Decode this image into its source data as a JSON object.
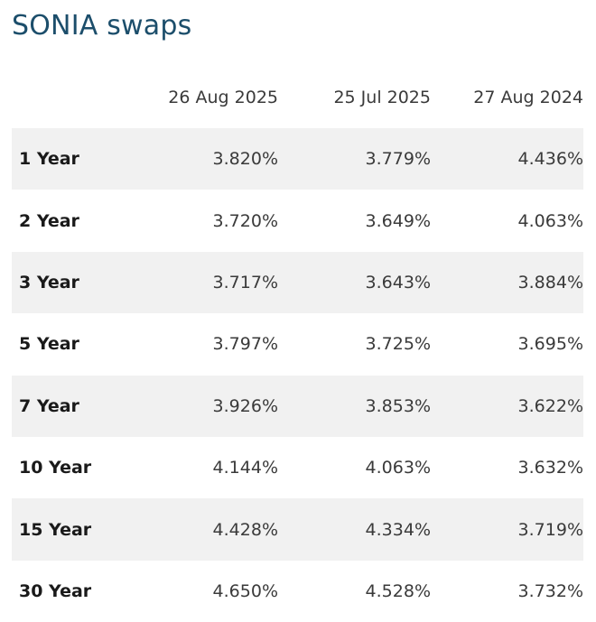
{
  "title": "SONIA swaps",
  "columns": [
    "26 Aug 2025",
    "25 Jul 2025",
    "27 Aug 2024"
  ],
  "rows": [
    {
      "tenor": "1 Year",
      "values": [
        "3.820%",
        "3.779%",
        "4.436%"
      ]
    },
    {
      "tenor": "2 Year",
      "values": [
        "3.720%",
        "3.649%",
        "4.063%"
      ]
    },
    {
      "tenor": "3 Year",
      "values": [
        "3.717%",
        "3.643%",
        "3.884%"
      ]
    },
    {
      "tenor": "5 Year",
      "values": [
        "3.797%",
        "3.725%",
        "3.695%"
      ]
    },
    {
      "tenor": "7 Year",
      "values": [
        "3.926%",
        "3.853%",
        "3.622%"
      ]
    },
    {
      "tenor": "10 Year",
      "values": [
        "4.144%",
        "4.063%",
        "3.632%"
      ]
    },
    {
      "tenor": "15 Year",
      "values": [
        "4.428%",
        "4.334%",
        "3.719%"
      ]
    },
    {
      "tenor": "30 Year",
      "values": [
        "4.650%",
        "4.528%",
        "3.732%"
      ]
    }
  ],
  "colors": {
    "title": "#1c4e6b",
    "shaded_row": "#f1f1f1"
  }
}
